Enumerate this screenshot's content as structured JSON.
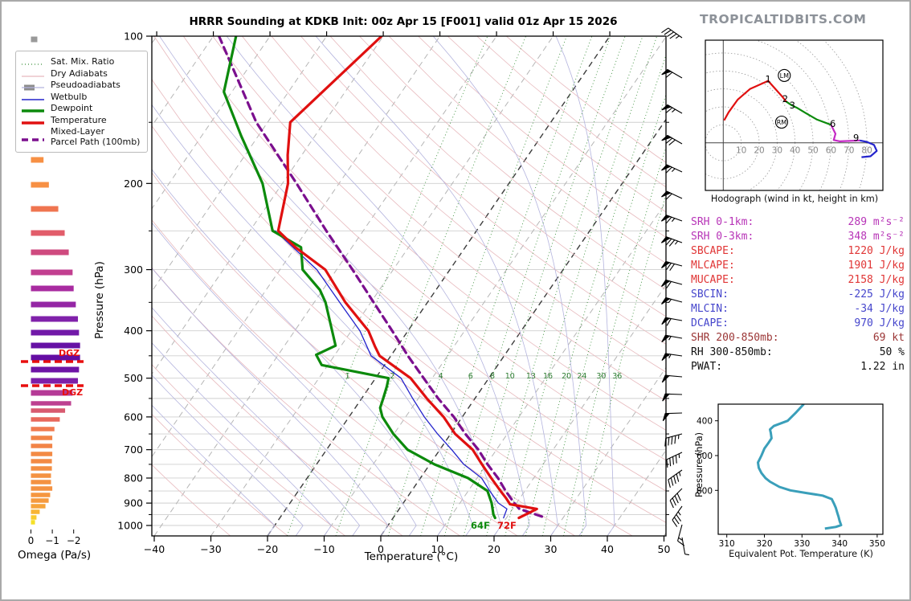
{
  "title": "HRRR Sounding at KDKB Init: 00z Apr 15 [F001] valid 01z Apr 15 2026",
  "watermark": "TROPICALTIDBITS.COM",
  "legend": {
    "items": [
      {
        "name": "sat-mix-ratio",
        "label": "Sat. Mix. Ratio",
        "style": "dotted-green"
      },
      {
        "name": "dry-adiabats",
        "label": "Dry Adiabats",
        "style": "thin-pink"
      },
      {
        "name": "pseudoadiabats",
        "label": "Pseudoadiabats",
        "style": "gray-patch-lavender"
      },
      {
        "name": "wetbulb",
        "label": "Wetbulb",
        "style": "thin-blue"
      },
      {
        "name": "dewpoint",
        "label": "Dewpoint",
        "style": "thick-green"
      },
      {
        "name": "temperature",
        "label": "Temperature",
        "style": "thick-red"
      },
      {
        "name": "parcel-path",
        "label": "Mixed-Layer\nParcel Path (100mb)",
        "style": "dashed-purple"
      }
    ]
  },
  "skewt": {
    "xlabel": "Temperature (°C)",
    "ylabel": "Pressure (hPa)",
    "x_ticks": [
      -40,
      -30,
      -20,
      -10,
      0,
      10,
      20,
      30,
      40,
      50
    ],
    "p_ticks": [
      100,
      200,
      300,
      400,
      500,
      600,
      700,
      800,
      900,
      1000
    ],
    "mixing_ratio_labels": [
      1,
      2,
      4,
      6,
      8,
      10,
      13,
      16,
      20,
      24,
      30,
      36
    ],
    "surface_temp_label": "72F",
    "surface_dewp_label": "64F",
    "colors": {
      "temperature": "#e01010",
      "dewpoint": "#0c8a0c",
      "wetbulb": "#2424cc",
      "parcel": "#7b0f8e",
      "isotherm": "#b4b4b4",
      "isotherm_major": "#3c3c3c",
      "dry_adiabat": "#e7b9bd",
      "pseudoadiabat": "#b4b4de",
      "mixing_ratio": "#3a8f3a",
      "grid": "#cfcfcf"
    }
  },
  "dgz": {
    "label": "DGZ",
    "color": "#e80e0e",
    "lines_y": [
      448,
      478
    ]
  },
  "omega": {
    "xlabel": "Omega (Pa/s)",
    "ticks": [
      0,
      -1,
      -2
    ]
  },
  "hodograph": {
    "caption": "Hodograph (wind in kt, height in km)",
    "ring_labels": [
      10,
      20,
      30,
      40,
      50,
      60,
      70,
      80
    ],
    "markers": [
      {
        "text": "LM",
        "u": 34,
        "v": 37.5
      },
      {
        "text": "RM",
        "u": 32.5,
        "v": 11.5
      }
    ],
    "height_labels": [
      {
        "text": "1",
        "u": 25,
        "v": 35.5
      },
      {
        "text": "2",
        "u": 34.5,
        "v": 24.5
      },
      {
        "text": "3",
        "u": 38.5,
        "v": 21
      },
      {
        "text": "6",
        "u": 61,
        "v": 10.5
      },
      {
        "text": "9",
        "u": 74,
        "v": 2.8
      }
    ]
  },
  "thetae": {
    "xlabel": "Equivalent Pot. Temperature (K)",
    "ylabel": "Pressure (hPa)",
    "x_ticks": [
      310,
      320,
      330,
      340,
      350
    ],
    "p_ticks": [
      400,
      600,
      800
    ],
    "color": "#3a9fba"
  },
  "stats": {
    "rows": [
      {
        "label": "SRH 0-1km:",
        "value": "289",
        "unit": "m²s⁻²",
        "color": "#b733b7"
      },
      {
        "label": "SRH 0-3km:",
        "value": "348",
        "unit": "m²s⁻²",
        "color": "#b733b7"
      },
      {
        "label": "SBCAPE:",
        "value": "1220",
        "unit": "J/kg",
        "color": "#e03535"
      },
      {
        "label": "MLCAPE:",
        "value": "1901",
        "unit": "J/kg",
        "color": "#e03535"
      },
      {
        "label": "MUCAPE:",
        "value": "2158",
        "unit": "J/kg",
        "color": "#e03535"
      },
      {
        "label": "SBCIN:",
        "value": "-225",
        "unit": "J/kg",
        "color": "#4646cc"
      },
      {
        "label": "MLCIN:",
        "value": "-34",
        "unit": "J/kg",
        "color": "#4646cc"
      },
      {
        "label": "DCAPE:",
        "value": "970",
        "unit": "J/kg",
        "color": "#4646cc"
      },
      {
        "label": "SHR 200-850mb:",
        "value": "69",
        "unit": "kt",
        "color": "#9b3535"
      },
      {
        "label": "RH 300-850mb:",
        "value": "50",
        "unit": "%",
        "color": "#111111"
      },
      {
        "label": "PWAT:",
        "value": "1.22",
        "unit": "in",
        "color": "#111111"
      }
    ]
  },
  "chart_data": [
    {
      "id": "skewt",
      "type": "line",
      "title": "HRRR Sounding at KDKB Init: 00z Apr 15 [F001] valid 01z Apr 15 2026",
      "xlabel": "Temperature (°C)",
      "ylabel": "Pressure (hPa)",
      "xlim": [
        -40,
        50
      ],
      "plim": [
        100,
        1050
      ],
      "series": [
        {
          "name": "Temperature",
          "color": "#e01010",
          "width": 3.2,
          "points_p_t": [
            [
              100,
              -60.3
            ],
            [
              150,
              -66
            ],
            [
              175,
              -62.5
            ],
            [
              200,
              -59
            ],
            [
              250,
              -55
            ],
            [
              270,
              -50
            ],
            [
              300,
              -42
            ],
            [
              350,
              -34.5
            ],
            [
              400,
              -27
            ],
            [
              430,
              -24
            ],
            [
              450,
              -22
            ],
            [
              500,
              -13.8
            ],
            [
              550,
              -8.5
            ],
            [
              600,
              -3.3
            ],
            [
              650,
              0.8
            ],
            [
              700,
              5.8
            ],
            [
              750,
              9.2
            ],
            [
              800,
              12.5
            ],
            [
              850,
              15.7
            ],
            [
              880,
              17.6
            ],
            [
              905,
              19
            ],
            [
              925,
              24.3
            ],
            [
              965,
              22.2
            ]
          ]
        },
        {
          "name": "Dewpoint",
          "color": "#0c8a0c",
          "width": 3.2,
          "points_p_t": [
            [
              100,
              -86
            ],
            [
              130,
              -81.4
            ],
            [
              160,
              -73
            ],
            [
              200,
              -63.5
            ],
            [
              250,
              -56
            ],
            [
              270,
              -49
            ],
            [
              300,
              -46
            ],
            [
              330,
              -40.5
            ],
            [
              350,
              -38
            ],
            [
              400,
              -33.4
            ],
            [
              429,
              -31
            ],
            [
              448,
              -33.3
            ],
            [
              470,
              -31.1
            ],
            [
              500,
              -17.7
            ],
            [
              520,
              -17
            ],
            [
              550,
              -16.2
            ],
            [
              575,
              -15.6
            ],
            [
              600,
              -14.1
            ],
            [
              650,
              -10.1
            ],
            [
              700,
              -5.7
            ],
            [
              750,
              0.8
            ],
            [
              800,
              8.4
            ],
            [
              850,
              13.4
            ],
            [
              900,
              15.6
            ],
            [
              950,
              17.3
            ],
            [
              965,
              18
            ]
          ]
        },
        {
          "name": "Wetbulb",
          "color": "#2424cc",
          "width": 1.3,
          "points_p_t": [
            [
              250,
              -55.5
            ],
            [
              300,
              -43.5
            ],
            [
              350,
              -35.5
            ],
            [
              400,
              -28.5
            ],
            [
              450,
              -23.5
            ],
            [
              500,
              -15.5
            ],
            [
              550,
              -11
            ],
            [
              600,
              -6.7
            ],
            [
              650,
              -2.3
            ],
            [
              700,
              2.1
            ],
            [
              750,
              6
            ],
            [
              800,
              10.8
            ],
            [
              850,
              13.8
            ],
            [
              900,
              16.8
            ],
            [
              925,
              19
            ],
            [
              965,
              19.5
            ]
          ]
        },
        {
          "name": "Mixed-Layer Parcel Path (100mb)",
          "color": "#7b0f8e",
          "width": 3.2,
          "dash": "9,6",
          "points_p_t": [
            [
              100,
              -89
            ],
            [
              150,
              -72
            ],
            [
              200,
              -57.5
            ],
            [
              250,
              -46.5
            ],
            [
              300,
              -37.2
            ],
            [
              350,
              -29.5
            ],
            [
              400,
              -22.8
            ],
            [
              450,
              -17
            ],
            [
              500,
              -11.5
            ],
            [
              550,
              -6.5
            ],
            [
              600,
              -1.5
            ],
            [
              650,
              2.6
            ],
            [
              700,
              6.8
            ],
            [
              750,
              10.2
            ],
            [
              800,
              13.7
            ],
            [
              850,
              16.6
            ],
            [
              900,
              19.6
            ],
            [
              925,
              21.2
            ],
            [
              965,
              27
            ]
          ]
        }
      ]
    },
    {
      "id": "hodograph",
      "type": "line",
      "units": "kt",
      "ring_step": 10,
      "max_ring": 80,
      "segments": [
        {
          "layer": "0-2km",
          "color": "#e01010",
          "points_uv": [
            [
              0.5,
              12.5
            ],
            [
              3,
              17
            ],
            [
              8,
              24
            ],
            [
              15,
              30
            ],
            [
              25,
              34.5
            ],
            [
              29,
              30
            ],
            [
              33,
              25.5
            ],
            [
              35,
              23
            ]
          ]
        },
        {
          "layer": "3-6km",
          "color": "#0c8a0c",
          "points_uv": [
            [
              35,
              23
            ],
            [
              38,
              21
            ],
            [
              41,
              19.5
            ],
            [
              46,
              16.5
            ],
            [
              52,
              13
            ],
            [
              60,
              10
            ]
          ]
        },
        {
          "layer": "6-9km",
          "color": "#c428c4",
          "points_uv": [
            [
              60,
              10
            ],
            [
              62.5,
              5
            ],
            [
              61.5,
              1.5
            ],
            [
              65,
              0.8
            ],
            [
              76,
              1.3
            ]
          ]
        },
        {
          "layer": "9-12km",
          "color": "#2424cc",
          "points_uv": [
            [
              76,
              1.3
            ],
            [
              80,
              0.5
            ],
            [
              84,
              -1.2
            ],
            [
              85.5,
              -4.5
            ],
            [
              82,
              -7.5
            ],
            [
              77,
              -8
            ]
          ]
        }
      ]
    },
    {
      "id": "theta_e",
      "type": "line",
      "xlabel": "Equivalent Pot. Temperature (K)",
      "ylabel": "Pressure (hPa)",
      "xlim": [
        310,
        350
      ],
      "plim": [
        304,
        1053
      ],
      "color": "#3a9fba",
      "points_p_thetae": [
        [
          304,
          330.5
        ],
        [
          350,
          328.5
        ],
        [
          400,
          326.2
        ],
        [
          430,
          322.5
        ],
        [
          450,
          321.5
        ],
        [
          470,
          321.7
        ],
        [
          500,
          321.9
        ],
        [
          530,
          321
        ],
        [
          560,
          320
        ],
        [
          600,
          319.2
        ],
        [
          640,
          318.3
        ],
        [
          670,
          318.5
        ],
        [
          700,
          319.2
        ],
        [
          730,
          320.3
        ],
        [
          750,
          321.5
        ],
        [
          780,
          324
        ],
        [
          800,
          326.9
        ],
        [
          815,
          331
        ],
        [
          830,
          335.5
        ],
        [
          850,
          337.9
        ],
        [
          880,
          338.6
        ],
        [
          900,
          339
        ],
        [
          930,
          339.4
        ],
        [
          950,
          339.7
        ],
        [
          975,
          340
        ],
        [
          1000,
          340.4
        ],
        [
          1010,
          339
        ],
        [
          1020,
          336.1
        ]
      ]
    },
    {
      "id": "omega",
      "type": "bar",
      "xlabel": "Omega (Pa/s)",
      "axis_ticks": [
        0,
        -1,
        -2
      ],
      "bars_y_val_color": [
        [
          47,
          0.3,
          "#999999"
        ],
        [
          197,
          0.59,
          "#f79044"
        ],
        [
          228,
          0.84,
          "#f79044"
        ],
        [
          258,
          1.28,
          "#ef7550"
        ],
        [
          288,
          1.58,
          "#e25d6a"
        ],
        [
          312,
          1.77,
          "#cf4a7f"
        ],
        [
          337,
          1.95,
          "#c23f90"
        ],
        [
          357,
          2.0,
          "#a82ba0"
        ],
        [
          377,
          2.1,
          "#9526a5"
        ],
        [
          395,
          2.2,
          "#8021aa"
        ],
        [
          412,
          2.25,
          "#7119a8"
        ],
        [
          428,
          2.3,
          "#6611a5"
        ],
        [
          443,
          2.3,
          "#640da3"
        ],
        [
          458,
          2.25,
          "#6e14a6"
        ],
        [
          472,
          2.2,
          "#7d1fa9"
        ],
        [
          487,
          1.95,
          "#b53a96"
        ],
        [
          500,
          1.88,
          "#bd4090"
        ],
        [
          509,
          1.6,
          "#d85a70"
        ],
        [
          520,
          1.35,
          "#e8685c"
        ],
        [
          532,
          1.1,
          "#f07b50"
        ],
        [
          543,
          1.0,
          "#f28447"
        ],
        [
          553,
          1.0,
          "#f28447"
        ],
        [
          563,
          1.0,
          "#f38a44"
        ],
        [
          572,
          0.98,
          "#f38a44"
        ],
        [
          581,
          0.98,
          "#f38e42"
        ],
        [
          590,
          0.94,
          "#f49242"
        ],
        [
          598,
          0.94,
          "#f49242"
        ],
        [
          606,
          1.0,
          "#f49242"
        ],
        [
          614,
          0.9,
          "#f59640"
        ],
        [
          621,
          0.83,
          "#f59a3e"
        ],
        [
          628,
          0.68,
          "#f6a43b"
        ],
        [
          635,
          0.41,
          "#f8b535"
        ],
        [
          642,
          0.26,
          "#f9cb2e"
        ],
        [
          648,
          0.19,
          "#f5e027"
        ]
      ]
    },
    {
      "id": "wind_barbs",
      "units": "kt",
      "barbs_y_kt_dir": [
        [
          45,
          45,
          305
        ],
        [
          95,
          60,
          300
        ],
        [
          139,
          65,
          300
        ],
        [
          177,
          70,
          300
        ],
        [
          212,
          65,
          295
        ],
        [
          245,
          60,
          295
        ],
        [
          273,
          65,
          290
        ],
        [
          300,
          75,
          290
        ],
        [
          329,
          70,
          285
        ],
        [
          352,
          60,
          285
        ],
        [
          374,
          55,
          285
        ],
        [
          397,
          60,
          280
        ],
        [
          419,
          55,
          280
        ],
        [
          441,
          55,
          278
        ],
        [
          467,
          50,
          275
        ],
        [
          489,
          50,
          272
        ],
        [
          512,
          50,
          268
        ],
        [
          538,
          45,
          255
        ],
        [
          561,
          45,
          245
        ],
        [
          583,
          45,
          235
        ],
        [
          606,
          40,
          225
        ],
        [
          628,
          35,
          215
        ],
        [
          651,
          15,
          195
        ],
        [
          667,
          8,
          170
        ]
      ]
    }
  ]
}
